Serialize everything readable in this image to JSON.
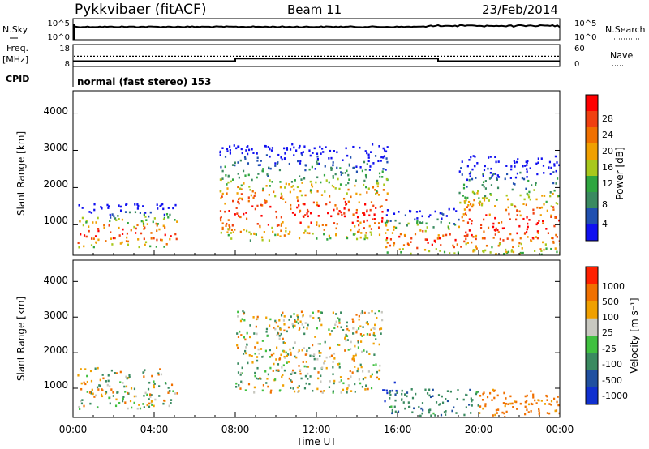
{
  "header": {
    "title": "Pykkvibaer (fitACF)",
    "beam": "Beam 11",
    "date": "23/Feb/2014"
  },
  "noise_panel": {
    "left_label": "N.Sky",
    "right_label": "N.Search",
    "left_ticks": [
      "10^5",
      "10^0"
    ],
    "right_ticks": [
      "10^5",
      "10^0"
    ]
  },
  "freq_panel": {
    "left_label_1": "Freq.",
    "left_label_2": "[MHz]",
    "right_label": "Nave",
    "left_ticks": [
      "18",
      "8"
    ],
    "right_ticks": [
      "60",
      "0"
    ],
    "freq_levels_mhz": [
      {
        "from_h": 0,
        "to_h": 8,
        "value": 10.4
      },
      {
        "from_h": 8,
        "to_h": 18,
        "value": 11.6
      },
      {
        "from_h": 18,
        "to_h": 24,
        "value": 10.4
      }
    ],
    "nave_level": 28
  },
  "cpid": {
    "label": "CPID",
    "value": "normal (fast stereo) 153"
  },
  "power_panel": {
    "ylabel": "Slant Range [km]",
    "yticks": [
      "4000",
      "3000",
      "2000",
      "1000"
    ],
    "colorbar_label": "Power [dB]",
    "colorbar_ticks": [
      "28",
      "24",
      "20",
      "16",
      "12",
      "8",
      "4"
    ],
    "colors": [
      "#1010f0",
      "#2050b0",
      "#3a8a60",
      "#2fa640",
      "#a8c81c",
      "#f0a000",
      "#f07000",
      "#f04010",
      "#ff0000"
    ]
  },
  "velocity_panel": {
    "ylabel": "Slant Range [km]",
    "yticks": [
      "4000",
      "3000",
      "2000",
      "1000"
    ],
    "colorbar_label": "Velocity [m s⁻¹]",
    "colorbar_ticks": [
      "1000",
      "500",
      "100",
      "25",
      "-25",
      "-100",
      "-500",
      "-1000"
    ],
    "colors": [
      "#1030d0",
      "#2050a0",
      "#3a8a60",
      "#40c040",
      "#c8c8c0",
      "#f0a000",
      "#f07000",
      "#ff2000"
    ]
  },
  "x_axis": {
    "label": "Time UT",
    "ticks": [
      "00:00",
      "04:00",
      "08:00",
      "12:00",
      "16:00",
      "20:00",
      "00:00"
    ]
  },
  "chart_data": {
    "type": "heatmap",
    "title": "Pykkvibaer (fitACF)",
    "xlabel": "Time UT",
    "ylabel": "Slant Range [km]",
    "xlim_hours": [
      0,
      24
    ],
    "ylim_km": [
      180,
      4600
    ],
    "panels": [
      {
        "name": "Power [dB]",
        "scale": [
          0,
          30
        ],
        "regions": [
          {
            "t_start": 0.2,
            "t_end": 5.2,
            "r_start": 420,
            "r_end": 1600,
            "peak_value": 24
          },
          {
            "t_start": 7.2,
            "t_end": 15.5,
            "r_start": 600,
            "r_end": 3200,
            "peak_value": 28
          },
          {
            "t_start": 15.3,
            "t_end": 19.2,
            "r_start": 250,
            "r_end": 1450,
            "peak_value": 28
          },
          {
            "t_start": 19.0,
            "t_end": 24,
            "r_start": 220,
            "r_end": 2900,
            "peak_value": 28
          }
        ]
      },
      {
        "name": "Velocity [m s⁻¹]",
        "scale": [
          -1000,
          1000
        ],
        "regions": [
          {
            "t_start": 0.2,
            "t_end": 5.2,
            "r_start": 420,
            "r_end": 1600,
            "typical_value": 0
          },
          {
            "t_start": 8.0,
            "t_end": 15.2,
            "r_start": 900,
            "r_end": 3200,
            "typical_value": 0
          },
          {
            "t_start": 15.2,
            "t_end": 16.0,
            "r_start": 650,
            "r_end": 1300,
            "typical_value": 1000
          },
          {
            "t_start": 15.5,
            "t_end": 20.0,
            "r_start": 250,
            "r_end": 1000,
            "typical_value": 200
          },
          {
            "t_start": 20.0,
            "t_end": 24,
            "r_start": 220,
            "r_end": 1000,
            "typical_value": -200
          }
        ]
      }
    ]
  }
}
